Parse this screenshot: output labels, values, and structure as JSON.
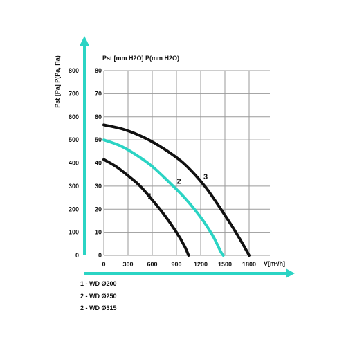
{
  "colors": {
    "axis": "#2bd4c4",
    "grid": "#9a9a9a",
    "curve_dark": "#111111",
    "curve_accent": "#2bd4c4"
  },
  "chart_data": {
    "type": "line",
    "x_label": "V[m³/h]",
    "y_label_left": "Pst [Pa] P(Pa, Па)",
    "y_label_top": "Pst [mm H2O] P(mm H2O)",
    "x_ticks": [
      0,
      300,
      600,
      900,
      1200,
      1500,
      1800
    ],
    "y_ticks_pa": [
      0,
      100,
      200,
      300,
      400,
      500,
      600,
      700,
      800
    ],
    "y_ticks_mm": [
      0,
      10,
      20,
      30,
      40,
      50,
      60,
      70,
      80
    ],
    "xlim": [
      0,
      2100
    ],
    "ylim": [
      0,
      800
    ],
    "grid": true,
    "series": [
      {
        "name": "1",
        "color": "#111111",
        "points": [
          [
            0,
            415
          ],
          [
            150,
            385
          ],
          [
            300,
            345
          ],
          [
            450,
            300
          ],
          [
            600,
            240
          ],
          [
            750,
            175
          ],
          [
            900,
            100
          ],
          [
            1000,
            40
          ],
          [
            1050,
            0
          ]
        ]
      },
      {
        "name": "2",
        "color": "#2bd4c4",
        "points": [
          [
            0,
            500
          ],
          [
            200,
            475
          ],
          [
            400,
            435
          ],
          [
            600,
            385
          ],
          [
            800,
            320
          ],
          [
            1000,
            250
          ],
          [
            1200,
            165
          ],
          [
            1350,
            85
          ],
          [
            1450,
            15
          ],
          [
            1480,
            0
          ]
        ]
      },
      {
        "name": "3",
        "color": "#111111",
        "points": [
          [
            0,
            565
          ],
          [
            250,
            545
          ],
          [
            500,
            510
          ],
          [
            750,
            460
          ],
          [
            1000,
            395
          ],
          [
            1250,
            300
          ],
          [
            1450,
            200
          ],
          [
            1600,
            120
          ],
          [
            1720,
            50
          ],
          [
            1800,
            0
          ]
        ]
      }
    ],
    "curve_labels": [
      {
        "text": "1",
        "x": 570,
        "y": 245
      },
      {
        "text": "2",
        "x": 930,
        "y": 310
      },
      {
        "text": "3",
        "x": 1260,
        "y": 330
      }
    ],
    "legend": [
      "1 - WD Ø200",
      "2 - WD Ø250",
      "2 - WD Ø315"
    ]
  }
}
